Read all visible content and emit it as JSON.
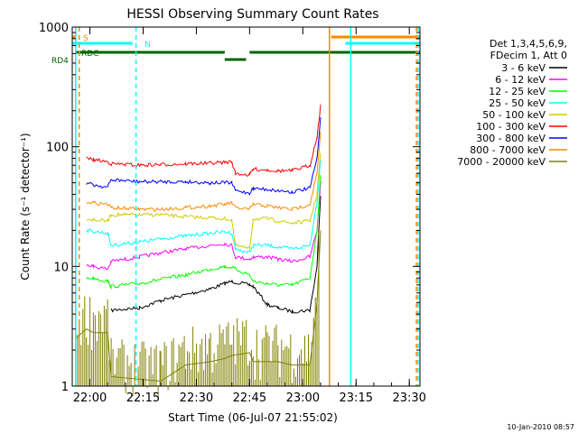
{
  "chart_data": {
    "type": "line",
    "title": "HESSI Observing Summary Count Rates",
    "xlabel": "Start Time (06-Jul-07 21:55:02)",
    "ylabel": "Count Rate (s⁻¹ detector⁻¹)",
    "y_scale": "log",
    "ylim": [
      1,
      1000
    ],
    "xlim": [
      "21:55:02",
      "23:33:00"
    ],
    "x_ticks": [
      "22:00",
      "22:15",
      "22:30",
      "22:45",
      "23:00",
      "23:15",
      "23:30"
    ],
    "y_ticks": [
      "1",
      "10",
      "100",
      "1000"
    ],
    "legend": {
      "position": "right",
      "header": [
        "Det 1,3,4,5,6,9,",
        "FDecim 1, Att 0"
      ]
    },
    "series": [
      {
        "name": "3 - 6 keV",
        "color": "#000000",
        "points": [
          [
            "21:56:00",
            null
          ],
          [
            "21:59:00",
            null
          ],
          [
            "22:01:00",
            null
          ],
          [
            "22:06:00",
            4.3
          ],
          [
            "22:10:00",
            4.4
          ],
          [
            "22:14:00",
            4.5
          ],
          [
            "22:20:00",
            5.2
          ],
          [
            "22:27:00",
            5.8
          ],
          [
            "22:34:00",
            6.5
          ],
          [
            "22:38:00",
            7.2
          ],
          [
            "22:40:00",
            7.5
          ],
          [
            "22:45:00",
            7.0
          ],
          [
            "22:46:00",
            6.8
          ],
          [
            "22:50:00",
            4.8
          ],
          [
            "22:53:00",
            4.5
          ],
          [
            "22:57:00",
            4.2
          ],
          [
            "23:02:00",
            4.3
          ],
          [
            "23:04:00",
            10
          ],
          [
            "23:05:00",
            40
          ]
        ]
      },
      {
        "name": "6 - 12 keV",
        "color": "#ff00ff",
        "points": [
          [
            "21:59:00",
            10.5
          ],
          [
            "22:01:00",
            10
          ],
          [
            "22:05:00",
            9.5
          ],
          [
            "22:06:00",
            11
          ],
          [
            "22:10:00",
            11.5
          ],
          [
            "22:14:00",
            12
          ],
          [
            "22:20:00",
            13
          ],
          [
            "22:27:00",
            14
          ],
          [
            "22:34:00",
            15
          ],
          [
            "22:38:00",
            15.5
          ],
          [
            "22:40:00",
            15
          ],
          [
            "22:41:00",
            12
          ],
          [
            "22:45:00",
            11.5
          ],
          [
            "22:46:00",
            12
          ],
          [
            "22:50:00",
            12
          ],
          [
            "22:53:00",
            11.5
          ],
          [
            "22:57:00",
            11
          ],
          [
            "23:02:00",
            12
          ],
          [
            "23:04:00",
            20
          ],
          [
            "23:05:00",
            50
          ]
        ]
      },
      {
        "name": "12 - 25 keV",
        "color": "#00ff00",
        "points": [
          [
            "21:59:00",
            8
          ],
          [
            "22:01:00",
            8
          ],
          [
            "22:05:00",
            7.5
          ],
          [
            "22:06:00",
            6.8
          ],
          [
            "22:10:00",
            7
          ],
          [
            "22:14:00",
            7.2
          ],
          [
            "22:20:00",
            7.8
          ],
          [
            "22:27:00",
            8.5
          ],
          [
            "22:34:00",
            9.5
          ],
          [
            "22:38:00",
            10
          ],
          [
            "22:40:00",
            9.8
          ],
          [
            "22:41:00",
            9.5
          ],
          [
            "22:45:00",
            8.5
          ],
          [
            "22:46:00",
            7.5
          ],
          [
            "22:50:00",
            7.2
          ],
          [
            "22:53:00",
            7
          ],
          [
            "22:57:00",
            7
          ],
          [
            "23:02:00",
            8
          ],
          [
            "23:04:00",
            20
          ],
          [
            "23:05:00",
            60
          ]
        ]
      },
      {
        "name": "25 - 50 keV",
        "color": "#00ffff",
        "points": [
          [
            "21:59:00",
            20
          ],
          [
            "22:01:00",
            19.5
          ],
          [
            "22:05:00",
            19
          ],
          [
            "22:06:00",
            15
          ],
          [
            "22:10:00",
            15.5
          ],
          [
            "22:14:00",
            16
          ],
          [
            "22:20:00",
            17
          ],
          [
            "22:27:00",
            18
          ],
          [
            "22:34:00",
            19
          ],
          [
            "22:38:00",
            19.5
          ],
          [
            "22:40:00",
            19
          ],
          [
            "22:41:00",
            14
          ],
          [
            "22:45:00",
            13
          ],
          [
            "22:46:00",
            15
          ],
          [
            "22:50:00",
            15
          ],
          [
            "22:53:00",
            14.5
          ],
          [
            "22:57:00",
            14
          ],
          [
            "23:02:00",
            15
          ],
          [
            "23:04:00",
            35
          ],
          [
            "23:05:00",
            80
          ]
        ]
      },
      {
        "name": "50 - 100 keV",
        "color": "#cccc00",
        "points": [
          [
            "21:59:00",
            25
          ],
          [
            "22:01:00",
            24.5
          ],
          [
            "22:05:00",
            24
          ],
          [
            "22:06:00",
            27
          ],
          [
            "22:10:00",
            27
          ],
          [
            "22:14:00",
            27
          ],
          [
            "22:20:00",
            27
          ],
          [
            "22:27:00",
            26
          ],
          [
            "22:34:00",
            25.5
          ],
          [
            "22:38:00",
            25
          ],
          [
            "22:40:00",
            24.5
          ],
          [
            "22:41:00",
            15
          ],
          [
            "22:45:00",
            14
          ],
          [
            "22:46:00",
            25
          ],
          [
            "22:50:00",
            25
          ],
          [
            "22:53:00",
            24
          ],
          [
            "22:57:00",
            23
          ],
          [
            "23:02:00",
            24
          ],
          [
            "23:04:00",
            40
          ],
          [
            "23:05:00",
            90
          ]
        ]
      },
      {
        "name": "100 - 300 keV",
        "color": "#ff0000",
        "points": [
          [
            "21:59:00",
            80
          ],
          [
            "22:01:00",
            78
          ],
          [
            "22:05:00",
            75
          ],
          [
            "22:06:00",
            72
          ],
          [
            "22:10:00",
            71
          ],
          [
            "22:14:00",
            70
          ],
          [
            "22:20:00",
            71
          ],
          [
            "22:27:00",
            72
          ],
          [
            "22:34:00",
            73
          ],
          [
            "22:38:00",
            74
          ],
          [
            "22:40:00",
            75
          ],
          [
            "22:41:00",
            60
          ],
          [
            "22:45:00",
            58
          ],
          [
            "22:46:00",
            65
          ],
          [
            "22:50:00",
            64
          ],
          [
            "22:53:00",
            63
          ],
          [
            "22:57:00",
            63
          ],
          [
            "23:02:00",
            70
          ],
          [
            "23:04:00",
            120
          ],
          [
            "23:05:00",
            220
          ]
        ]
      },
      {
        "name": "300 - 800 keV",
        "color": "#0000ff",
        "points": [
          [
            "21:59:00",
            50
          ],
          [
            "22:01:00",
            48
          ],
          [
            "22:05:00",
            46
          ],
          [
            "22:06:00",
            53
          ],
          [
            "22:10:00",
            52
          ],
          [
            "22:14:00",
            51
          ],
          [
            "22:20:00",
            51
          ],
          [
            "22:27:00",
            51
          ],
          [
            "22:34:00",
            50
          ],
          [
            "22:38:00",
            50
          ],
          [
            "22:40:00",
            50
          ],
          [
            "22:41:00",
            43
          ],
          [
            "22:45:00",
            41
          ],
          [
            "22:46:00",
            45
          ],
          [
            "22:50:00",
            44
          ],
          [
            "22:53:00",
            43
          ],
          [
            "22:57:00",
            42
          ],
          [
            "23:02:00",
            45
          ],
          [
            "23:04:00",
            80
          ],
          [
            "23:05:00",
            170
          ]
        ]
      },
      {
        "name": "800 - 7000 keV",
        "color": "#ff8800",
        "points": [
          [
            "21:59:00",
            35
          ],
          [
            "22:01:00",
            34
          ],
          [
            "22:05:00",
            33
          ],
          [
            "22:06:00",
            31
          ],
          [
            "22:10:00",
            30.5
          ],
          [
            "22:14:00",
            30
          ],
          [
            "22:20:00",
            30
          ],
          [
            "22:27:00",
            31
          ],
          [
            "22:34:00",
            32
          ],
          [
            "22:38:00",
            33
          ],
          [
            "22:40:00",
            34
          ],
          [
            "22:41:00",
            31
          ],
          [
            "22:45:00",
            30
          ],
          [
            "22:46:00",
            33
          ],
          [
            "22:50:00",
            32
          ],
          [
            "22:53:00",
            31
          ],
          [
            "22:57:00",
            30
          ],
          [
            "23:02:00",
            33
          ],
          [
            "23:04:00",
            60
          ],
          [
            "23:05:00",
            130
          ]
        ]
      },
      {
        "name": "7000 - 20000 keV",
        "color": "#808000",
        "points": [
          [
            "21:56:00",
            2.5
          ],
          [
            "21:59:00",
            3
          ],
          [
            "22:01:00",
            2.8
          ],
          [
            "22:05:00",
            2.8
          ],
          [
            "22:06:00",
            1.2
          ],
          [
            "22:20:00",
            1.1
          ],
          [
            "22:27:00",
            1.5
          ],
          [
            "22:34:00",
            1.6
          ],
          [
            "22:38:00",
            1.7
          ],
          [
            "22:40:00",
            1.8
          ],
          [
            "22:45:00",
            1.9
          ],
          [
            "22:46:00",
            1.6
          ],
          [
            "22:50:00",
            1.6
          ],
          [
            "22:53:00",
            1.6
          ],
          [
            "22:57:00",
            1.5
          ],
          [
            "23:02:00",
            1.5
          ],
          [
            "23:04:00",
            5
          ],
          [
            "23:05:00",
            20
          ]
        ]
      }
    ],
    "flags": [
      {
        "label": "S",
        "color": "#ff8800",
        "segments": [
          [
            "21:55:02",
            "21:56:00"
          ],
          [
            "23:08:00",
            "23:33:00"
          ]
        ]
      },
      {
        "label": "N",
        "color": "#00ffff",
        "segments": [
          [
            "21:55:02",
            "22:12:00"
          ],
          [
            "23:12:00",
            "23:33:00"
          ]
        ]
      },
      {
        "label": "RDC",
        "color": "#006600",
        "segments": [
          [
            "21:56:00",
            "22:38:00"
          ],
          [
            "22:45:00",
            "23:33:00"
          ]
        ]
      },
      {
        "label": "RD4",
        "color": "#006600",
        "segments": [
          [
            "22:38:00",
            "22:44:00"
          ]
        ]
      }
    ],
    "vertical_markers": [
      {
        "x": "21:56:00",
        "color": "#00ffff",
        "style": "solid"
      },
      {
        "x": "21:57:00",
        "color": "#ff8800",
        "style": "dashed"
      },
      {
        "x": "22:13:00",
        "color": "#00ffff",
        "style": "dashed"
      },
      {
        "x": "23:07:30",
        "color": "#ff8800",
        "style": "solid"
      },
      {
        "x": "23:13:30",
        "color": "#00ffff",
        "style": "solid"
      },
      {
        "x": "23:32:00",
        "color": "#ff8800",
        "style": "dashed"
      },
      {
        "x": "23:32:30",
        "color": "#00ffff",
        "style": "dashed"
      }
    ]
  },
  "footer": {
    "timestamp": "10-Jan-2010 08:57"
  }
}
